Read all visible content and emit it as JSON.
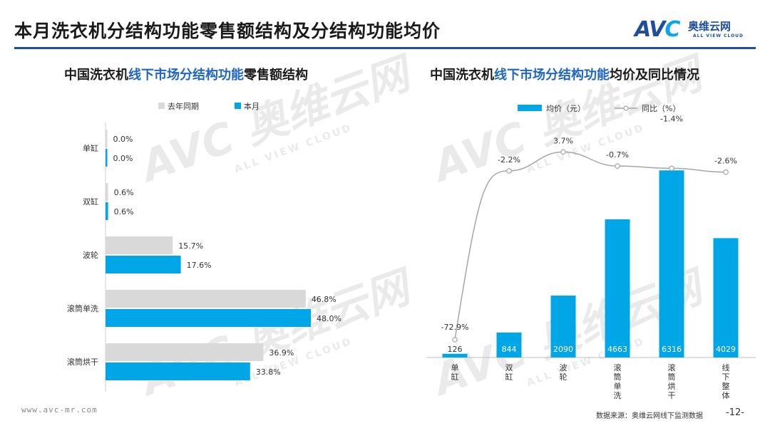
{
  "page": {
    "title": "本月洗衣机分结构功能零售额结构及分结构功能均价",
    "footer_url": "www.avc-mr.com",
    "footer_source": "数据来源：奥维云网线下监测数据",
    "page_number": "-12-"
  },
  "logo": {
    "mark": "AV",
    "mark_c": "C",
    "cn": "奥维云网",
    "en": "ALL VIEW CLOUD"
  },
  "colors": {
    "accent": "#1f4e9c",
    "bar_current": "#00a6e6",
    "bar_last": "#d9d9d9",
    "line": "#a6a6a6"
  },
  "charts": [
    {
      "title_pre": "中国洗衣机",
      "title_hl": "线下市场分结构功能",
      "title_post": "零售额结构"
    },
    {
      "title_pre": "中国洗衣机",
      "title_hl": "线下市场分结构功能",
      "title_post": "均价及同比情况"
    }
  ],
  "chart_data": [
    {
      "type": "bar",
      "orientation": "horizontal",
      "categories": [
        "单缸",
        "双缸",
        "波轮",
        "滚筒单洗",
        "滚筒烘干"
      ],
      "series": [
        {
          "name": "去年同期",
          "values": [
            0.0,
            0.6,
            15.7,
            46.8,
            36.9
          ]
        },
        {
          "name": "本月",
          "values": [
            0.0,
            0.6,
            17.6,
            48.0,
            33.8
          ]
        }
      ],
      "value_labels": [
        [
          "0.0%",
          "0.6%",
          "15.7%",
          "46.8%",
          "36.9%"
        ],
        [
          "0.0%",
          "0.6%",
          "17.6%",
          "48.0%",
          "33.8%"
        ]
      ],
      "unit": "%",
      "xlim": [
        0,
        60
      ],
      "legend": "top"
    },
    {
      "type": "bar+line",
      "categories": [
        "单缸",
        "双缸",
        "波轮",
        "滚筒单洗",
        "滚筒烘干",
        "线下整体"
      ],
      "bar_series": {
        "name": "均价（元）",
        "values": [
          126,
          844,
          2090,
          4663,
          6316,
          4029
        ]
      },
      "line_series": {
        "name": "同比（%）",
        "values": [
          -72.9,
          -2.2,
          3.7,
          -0.7,
          -1.4,
          -2.6
        ],
        "labels": [
          "-72.9%",
          "-2.2%",
          "3.7%",
          "-0.7%",
          "-1.4%",
          "-2.6%"
        ]
      },
      "bar_ylim": [
        0,
        7500
      ],
      "legend": "top"
    }
  ]
}
